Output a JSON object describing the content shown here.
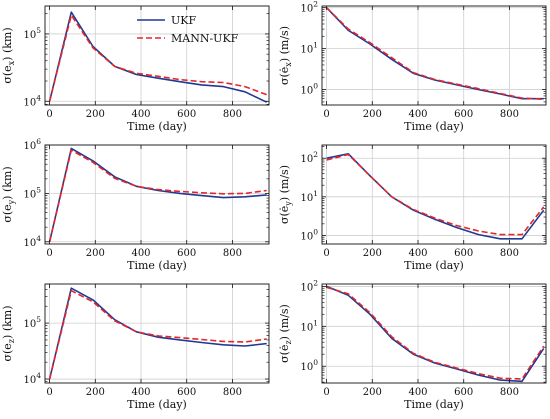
{
  "colors": {
    "ukf": "#1f3a93",
    "mann": "#e3262b",
    "grid": "#cfcfcf"
  },
  "chart_data": [
    {
      "type": "line",
      "scale": "log",
      "xlabel": "Time (day)",
      "ylabel": "σ(e_x) (km)",
      "ylabel_parts": {
        "sym": "σ(e",
        "sub": "x",
        "unit": ") (km)"
      },
      "xlim": [
        -20,
        960
      ],
      "ylim": [
        8800,
        260000
      ],
      "xticks": [
        0,
        200,
        400,
        600,
        800
      ],
      "xticklabels": [
        "0",
        "200",
        "400",
        "600",
        "800"
      ],
      "yticks": [
        10000,
        100000
      ],
      "ytick_base": [
        "10",
        "10"
      ],
      "ytick_exp": [
        "4",
        "5"
      ],
      "legend": {
        "position": "top",
        "entries": [
          "UKF",
          "MANN-UKF"
        ]
      },
      "series": [
        {
          "name": "UKF",
          "x": [
            0,
            95,
            190,
            285,
            380,
            475,
            570,
            665,
            760,
            855,
            950
          ],
          "y": [
            10000,
            210000,
            65000,
            33000,
            25000,
            22000,
            19500,
            17500,
            16500,
            13800,
            9700
          ]
        },
        {
          "name": "MANN-UKF",
          "x": [
            0,
            95,
            190,
            285,
            380,
            475,
            570,
            665,
            760,
            855,
            950
          ],
          "y": [
            10000,
            190000,
            62000,
            33000,
            26000,
            23500,
            21000,
            19500,
            19000,
            16500,
            12500
          ]
        }
      ]
    },
    {
      "type": "line",
      "scale": "log",
      "xlabel": "Time (day)",
      "ylabel": "σ(ė_x) (m/s)",
      "ylabel_parts": {
        "sym": "σ(ė",
        "sub": "x",
        "unit": ") (m/s)"
      },
      "xlim": [
        -20,
        960
      ],
      "ylim": [
        0.42,
        110
      ],
      "xticks": [
        0,
        200,
        400,
        600,
        800
      ],
      "xticklabels": [
        "0",
        "200",
        "400",
        "600",
        "800"
      ],
      "yticks": [
        1,
        10,
        100
      ],
      "ytick_base": [
        "10",
        "10",
        "10"
      ],
      "ytick_exp": [
        "0",
        "1",
        "2"
      ],
      "series": [
        {
          "name": "UKF",
          "x": [
            0,
            95,
            190,
            285,
            380,
            475,
            570,
            665,
            760,
            855,
            950
          ],
          "y": [
            100,
            28,
            13,
            5.5,
            2.5,
            1.7,
            1.3,
            1.0,
            0.78,
            0.6,
            0.6
          ]
        },
        {
          "name": "MANN-UKF",
          "x": [
            0,
            95,
            190,
            285,
            380,
            475,
            570,
            665,
            760,
            855,
            950
          ],
          "y": [
            100,
            30,
            14,
            6.0,
            2.6,
            1.75,
            1.35,
            1.05,
            0.8,
            0.62,
            0.58
          ]
        }
      ]
    },
    {
      "type": "line",
      "scale": "log",
      "xlabel": "Time (day)",
      "ylabel": "σ(e_y) (km)",
      "ylabel_parts": {
        "sym": "σ(e",
        "sub": "y",
        "unit": ") (km)"
      },
      "xlim": [
        -20,
        960
      ],
      "ylim": [
        9000,
        1000000
      ],
      "xticks": [
        0,
        200,
        400,
        600,
        800
      ],
      "xticklabels": [
        "0",
        "200",
        "400",
        "600",
        "800"
      ],
      "yticks": [
        10000,
        100000,
        1000000
      ],
      "ytick_base": [
        "10",
        "10",
        "10"
      ],
      "ytick_exp": [
        "4",
        "5",
        "6"
      ],
      "series": [
        {
          "name": "UKF",
          "x": [
            0,
            95,
            190,
            285,
            380,
            475,
            570,
            665,
            760,
            855,
            950
          ],
          "y": [
            10000,
            850000,
            470000,
            220000,
            140000,
            115000,
            100000,
            90000,
            82000,
            85000,
            93000
          ]
        },
        {
          "name": "MANN-UKF",
          "x": [
            0,
            95,
            190,
            285,
            380,
            475,
            570,
            665,
            760,
            855,
            950
          ],
          "y": [
            10000,
            780000,
            440000,
            205000,
            140000,
            120000,
            110000,
            103000,
            98000,
            100000,
            115000
          ]
        }
      ]
    },
    {
      "type": "line",
      "scale": "log",
      "xlabel": "Time (day)",
      "ylabel": "σ(ė_y) (m/s)",
      "ylabel_parts": {
        "sym": "σ(ė",
        "sub": "y",
        "unit": ") (m/s)"
      },
      "xlim": [
        -20,
        960
      ],
      "ylim": [
        0.6,
        220
      ],
      "xticks": [
        0,
        200,
        400,
        600,
        800
      ],
      "xticklabels": [
        "0",
        "200",
        "400",
        "600",
        "800"
      ],
      "yticks": [
        1,
        10,
        100
      ],
      "ytick_base": [
        "10",
        "10",
        "10"
      ],
      "ytick_exp": [
        "0",
        "1",
        "2"
      ],
      "series": [
        {
          "name": "UKF",
          "x": [
            0,
            95,
            190,
            285,
            380,
            475,
            570,
            665,
            760,
            855,
            950
          ],
          "y": [
            100,
            130,
            35,
            10,
            4.5,
            2.6,
            1.6,
            1.05,
            0.82,
            0.82,
            4.5
          ]
        },
        {
          "name": "MANN-UKF",
          "x": [
            0,
            95,
            190,
            285,
            380,
            475,
            570,
            665,
            760,
            855,
            950
          ],
          "y": [
            90,
            125,
            35,
            10,
            4.7,
            2.8,
            1.8,
            1.3,
            1.05,
            1.05,
            5.5
          ]
        }
      ]
    },
    {
      "type": "line",
      "scale": "log",
      "xlabel": "Time (day)",
      "ylabel": "σ(e_z) (km)",
      "ylabel_parts": {
        "sym": "σ(e",
        "sub": "z",
        "unit": ") (km)"
      },
      "xlim": [
        -20,
        960
      ],
      "ylim": [
        8500,
        500000
      ],
      "xticks": [
        0,
        200,
        400,
        600,
        800
      ],
      "xticklabels": [
        "0",
        "200",
        "400",
        "600",
        "800"
      ],
      "yticks": [
        10000,
        100000
      ],
      "ytick_base": [
        "10",
        "10"
      ],
      "ytick_exp": [
        "4",
        "5"
      ],
      "series": [
        {
          "name": "UKF",
          "x": [
            0,
            95,
            190,
            285,
            380,
            475,
            570,
            665,
            760,
            855,
            950
          ],
          "y": [
            10000,
            420000,
            260000,
            115000,
            70000,
            56000,
            50000,
            45000,
            41000,
            39000,
            43000
          ]
        },
        {
          "name": "MANN-UKF",
          "x": [
            0,
            95,
            190,
            285,
            380,
            475,
            570,
            665,
            760,
            855,
            950
          ],
          "y": [
            10000,
            380000,
            240000,
            110000,
            70000,
            59000,
            55000,
            51000,
            47000,
            46000,
            52000
          ]
        }
      ]
    },
    {
      "type": "line",
      "scale": "log",
      "xlabel": "Time (day)",
      "ylabel": "σ(ė_z) (m/s)",
      "ylabel_parts": {
        "sym": "σ(ė",
        "sub": "z",
        "unit": ") (m/s)"
      },
      "xlim": [
        -20,
        960
      ],
      "ylim": [
        0.38,
        115
      ],
      "xticks": [
        0,
        200,
        400,
        600,
        800
      ],
      "xticklabels": [
        "0",
        "200",
        "400",
        "600",
        "800"
      ],
      "yticks": [
        1,
        10,
        100
      ],
      "ytick_base": [
        "10",
        "10",
        "10"
      ],
      "ytick_exp": [
        "0",
        "1",
        "2"
      ],
      "series": [
        {
          "name": "UKF",
          "x": [
            0,
            95,
            190,
            285,
            380,
            475,
            570,
            665,
            760,
            855,
            950
          ],
          "y": [
            100,
            60,
            20,
            5.0,
            2.0,
            1.2,
            0.85,
            0.6,
            0.45,
            0.42,
            2.8
          ]
        },
        {
          "name": "MANN-UKF",
          "x": [
            0,
            95,
            190,
            285,
            380,
            475,
            570,
            665,
            760,
            855,
            950
          ],
          "y": [
            95,
            65,
            22,
            5.5,
            2.1,
            1.25,
            0.9,
            0.65,
            0.5,
            0.48,
            3.2
          ]
        }
      ]
    }
  ]
}
